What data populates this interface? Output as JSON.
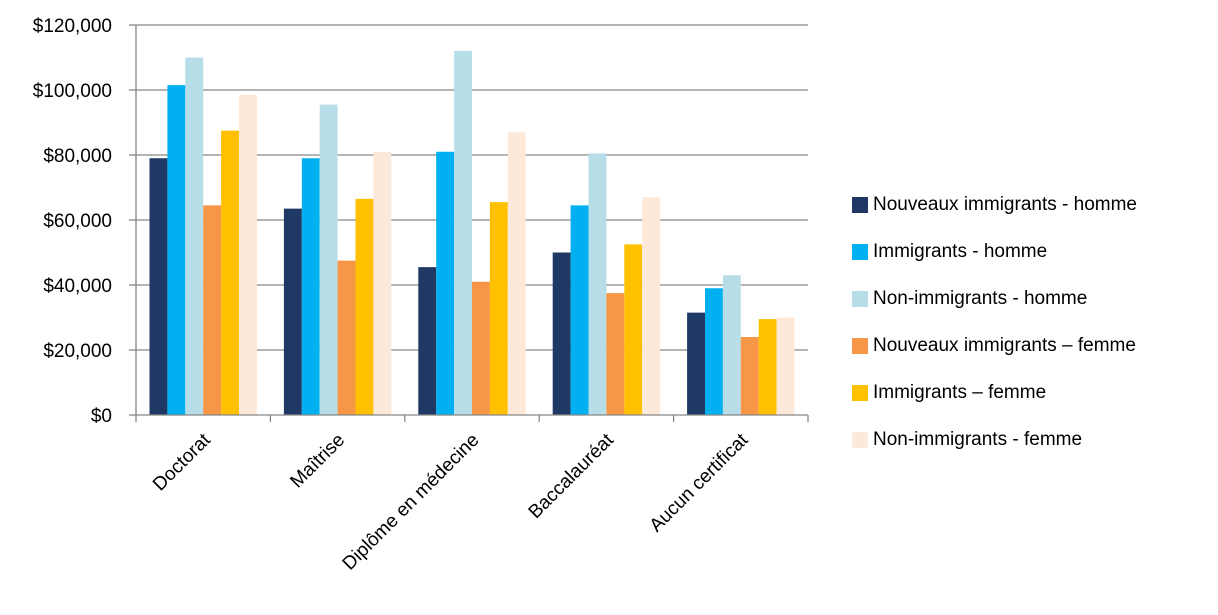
{
  "chart_data": {
    "type": "bar",
    "categories": [
      "Doctorat",
      "Maîtrise",
      "Diplôme en médecine",
      "Baccalauréat",
      "Aucun certificat"
    ],
    "series": [
      {
        "name": "Nouveaux immigrants - homme",
        "color": "#1F3864",
        "values": [
          79000,
          63500,
          45500,
          50000,
          31500
        ]
      },
      {
        "name": "Immigrants - homme",
        "color": "#00B0F0",
        "values": [
          101500,
          79000,
          81000,
          64500,
          39000
        ]
      },
      {
        "name": "Non-immigrants - homme",
        "color": "#B7DEE8",
        "values": [
          110000,
          95500,
          112000,
          80500,
          43000
        ]
      },
      {
        "name": "Nouveaux immigrants – femme",
        "color": "#F79646",
        "values": [
          64500,
          47500,
          41000,
          37500,
          24000
        ]
      },
      {
        "name": "Immigrants – femme",
        "color": "#FFC000",
        "values": [
          87500,
          66500,
          65500,
          52500,
          29500
        ]
      },
      {
        "name": "Non-immigrants - femme",
        "color": "#FDE9D9",
        "values": [
          98500,
          81000,
          87000,
          67000,
          30000
        ]
      }
    ],
    "y_ticks": [
      "$0",
      "$20,000",
      "$40,000",
      "$60,000",
      "$80,000",
      "$100,000",
      "$120,000"
    ],
    "ylim": [
      0,
      120000
    ],
    "grid": true,
    "legend_position": "right",
    "title": "",
    "xlabel": "",
    "ylabel": ""
  }
}
